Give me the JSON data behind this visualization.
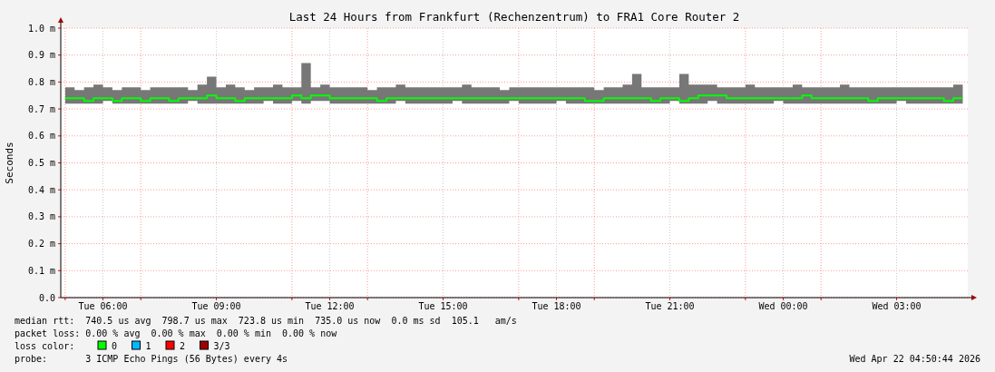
{
  "chart_data": {
    "type": "line",
    "title": "Last 24 Hours from Frankfurt (Rechenzentrum) to FRA1 Core Router 2",
    "ylabel": "Seconds",
    "xlim": [
      "2026-04-21T04:53",
      "2026-04-22T04:53"
    ],
    "xticks": [
      {
        "value": "2026-04-21T05:00",
        "label": null
      },
      {
        "value": "2026-04-21T06:00",
        "label": "Tue 06:00"
      },
      {
        "value": "2026-04-21T07:00",
        "label": null
      },
      {
        "value": "2026-04-21T09:00",
        "label": "Tue 09:00"
      },
      {
        "value": "2026-04-21T11:00",
        "label": null
      },
      {
        "value": "2026-04-21T12:00",
        "label": "Tue 12:00"
      },
      {
        "value": "2026-04-21T13:00",
        "label": null
      },
      {
        "value": "2026-04-21T15:00",
        "label": "Tue 15:00"
      },
      {
        "value": "2026-04-21T17:00",
        "label": null
      },
      {
        "value": "2026-04-21T18:00",
        "label": "Tue 18:00"
      },
      {
        "value": "2026-04-21T19:00",
        "label": null
      },
      {
        "value": "2026-04-21T21:00",
        "label": "Tue 21:00"
      },
      {
        "value": "2026-04-21T23:00",
        "label": null
      },
      {
        "value": "2026-04-22T00:00",
        "label": "Wed 00:00"
      },
      {
        "value": "2026-04-22T01:00",
        "label": null
      },
      {
        "value": "2026-04-22T03:00",
        "label": "Wed 03:00"
      }
    ],
    "ylim": [
      0,
      1.0
    ],
    "yticks": [
      {
        "value": 0,
        "label": "0.0"
      },
      {
        "value": 0.1,
        "label": "0.1 m"
      },
      {
        "value": 0.2,
        "label": "0.2 m"
      },
      {
        "value": 0.3,
        "label": "0.3 m"
      },
      {
        "value": 0.4,
        "label": "0.4 m"
      },
      {
        "value": 0.5,
        "label": "0.5 m"
      },
      {
        "value": 0.6,
        "label": "0.6 m"
      },
      {
        "value": 0.7,
        "label": "0.7 m"
      },
      {
        "value": 0.8,
        "label": "0.8 m"
      },
      {
        "value": 0.9,
        "label": "0.9 m"
      },
      {
        "value": 1.0,
        "label": "1.0 m"
      }
    ],
    "grid": true,
    "legend": "bottom left",
    "series": [
      {
        "name": "0",
        "color": "#00ff00",
        "x": [
          "2026-04-21T05:00",
          "2026-04-21T05:15",
          "2026-04-21T05:30",
          "2026-04-21T05:45",
          "2026-04-21T06:00",
          "2026-04-21T06:15",
          "2026-04-21T06:30",
          "2026-04-21T06:45",
          "2026-04-21T07:00",
          "2026-04-21T07:15",
          "2026-04-21T07:30",
          "2026-04-21T07:45",
          "2026-04-21T08:00",
          "2026-04-21T08:15",
          "2026-04-21T08:30",
          "2026-04-21T08:45",
          "2026-04-21T09:00",
          "2026-04-21T09:15",
          "2026-04-21T09:30",
          "2026-04-21T09:45",
          "2026-04-21T10:00",
          "2026-04-21T10:15",
          "2026-04-21T10:30",
          "2026-04-21T10:45",
          "2026-04-21T11:00",
          "2026-04-21T11:15",
          "2026-04-21T11:30",
          "2026-04-21T11:45",
          "2026-04-21T12:00",
          "2026-04-21T12:15",
          "2026-04-21T12:30",
          "2026-04-21T12:45",
          "2026-04-21T13:00",
          "2026-04-21T13:15",
          "2026-04-21T13:30",
          "2026-04-21T13:45",
          "2026-04-21T14:00",
          "2026-04-21T14:15",
          "2026-04-21T14:30",
          "2026-04-21T14:45",
          "2026-04-21T15:00",
          "2026-04-21T15:15",
          "2026-04-21T15:30",
          "2026-04-21T15:45",
          "2026-04-21T16:00",
          "2026-04-21T16:15",
          "2026-04-21T16:30",
          "2026-04-21T16:45",
          "2026-04-21T17:00",
          "2026-04-21T17:15",
          "2026-04-21T17:30",
          "2026-04-21T17:45",
          "2026-04-21T18:00",
          "2026-04-21T18:15",
          "2026-04-21T18:30",
          "2026-04-21T18:45",
          "2026-04-21T19:00",
          "2026-04-21T19:15",
          "2026-04-21T19:30",
          "2026-04-21T19:45",
          "2026-04-21T20:00",
          "2026-04-21T20:15",
          "2026-04-21T20:30",
          "2026-04-21T20:45",
          "2026-04-21T21:00",
          "2026-04-21T21:15",
          "2026-04-21T21:30",
          "2026-04-21T21:45",
          "2026-04-21T22:00",
          "2026-04-21T22:15",
          "2026-04-21T22:30",
          "2026-04-21T22:45",
          "2026-04-21T23:00",
          "2026-04-21T23:15",
          "2026-04-21T23:30",
          "2026-04-21T23:45",
          "2026-04-22T00:00",
          "2026-04-22T00:15",
          "2026-04-22T00:30",
          "2026-04-22T00:45",
          "2026-04-22T01:00",
          "2026-04-22T01:15",
          "2026-04-22T01:30",
          "2026-04-22T01:45",
          "2026-04-22T02:00",
          "2026-04-22T02:15",
          "2026-04-22T02:30",
          "2026-04-22T02:45",
          "2026-04-22T03:00",
          "2026-04-22T03:15",
          "2026-04-22T03:30",
          "2026-04-22T03:45",
          "2026-04-22T04:00",
          "2026-04-22T04:15",
          "2026-04-22T04:30",
          "2026-04-22T04:45"
        ],
        "values": [
          0.74,
          0.74,
          0.73,
          0.74,
          0.74,
          0.73,
          0.74,
          0.74,
          0.73,
          0.74,
          0.74,
          0.73,
          0.74,
          0.74,
          0.74,
          0.75,
          0.74,
          0.74,
          0.73,
          0.74,
          0.74,
          0.74,
          0.74,
          0.74,
          0.75,
          0.74,
          0.75,
          0.75,
          0.74,
          0.74,
          0.74,
          0.74,
          0.74,
          0.73,
          0.74,
          0.74,
          0.74,
          0.74,
          0.74,
          0.74,
          0.74,
          0.74,
          0.74,
          0.74,
          0.74,
          0.74,
          0.74,
          0.74,
          0.74,
          0.74,
          0.74,
          0.74,
          0.74,
          0.74,
          0.74,
          0.73,
          0.73,
          0.74,
          0.74,
          0.74,
          0.74,
          0.74,
          0.73,
          0.74,
          0.74,
          0.73,
          0.74,
          0.75,
          0.75,
          0.75,
          0.74,
          0.74,
          0.74,
          0.74,
          0.74,
          0.74,
          0.74,
          0.74,
          0.75,
          0.74,
          0.74,
          0.74,
          0.74,
          0.74,
          0.74,
          0.73,
          0.74,
          0.74,
          0.74,
          0.74,
          0.74,
          0.74,
          0.74,
          0.73,
          0.74,
          0.74
        ],
        "lower": [
          0.72,
          0.72,
          0.72,
          0.72,
          0.73,
          0.72,
          0.72,
          0.72,
          0.72,
          0.72,
          0.72,
          0.72,
          0.72,
          0.73,
          0.72,
          0.72,
          0.72,
          0.72,
          0.72,
          0.72,
          0.72,
          0.73,
          0.72,
          0.72,
          0.73,
          0.72,
          0.73,
          0.73,
          0.72,
          0.72,
          0.72,
          0.72,
          0.72,
          0.72,
          0.72,
          0.73,
          0.72,
          0.72,
          0.72,
          0.72,
          0.72,
          0.73,
          0.72,
          0.72,
          0.72,
          0.72,
          0.72,
          0.73,
          0.72,
          0.72,
          0.72,
          0.72,
          0.73,
          0.72,
          0.72,
          0.72,
          0.72,
          0.72,
          0.72,
          0.72,
          0.72,
          0.72,
          0.72,
          0.72,
          0.73,
          0.72,
          0.72,
          0.72,
          0.73,
          0.72,
          0.72,
          0.72,
          0.72,
          0.72,
          0.72,
          0.73,
          0.72,
          0.72,
          0.72,
          0.72,
          0.72,
          0.72,
          0.72,
          0.72,
          0.72,
          0.72,
          0.72,
          0.72,
          0.73,
          0.72,
          0.72,
          0.72,
          0.72,
          0.72,
          0.72,
          0.72
        ],
        "upper": [
          0.78,
          0.77,
          0.78,
          0.79,
          0.78,
          0.77,
          0.78,
          0.78,
          0.77,
          0.78,
          0.78,
          0.78,
          0.78,
          0.77,
          0.79,
          0.82,
          0.78,
          0.79,
          0.78,
          0.77,
          0.78,
          0.78,
          0.79,
          0.78,
          0.78,
          0.87,
          0.78,
          0.79,
          0.78,
          0.78,
          0.78,
          0.78,
          0.77,
          0.78,
          0.78,
          0.79,
          0.78,
          0.78,
          0.78,
          0.78,
          0.78,
          0.78,
          0.79,
          0.78,
          0.78,
          0.78,
          0.77,
          0.78,
          0.78,
          0.78,
          0.78,
          0.78,
          0.78,
          0.78,
          0.78,
          0.78,
          0.77,
          0.78,
          0.78,
          0.79,
          0.83,
          0.78,
          0.78,
          0.78,
          0.78,
          0.83,
          0.79,
          0.79,
          0.79,
          0.78,
          0.78,
          0.78,
          0.79,
          0.78,
          0.78,
          0.78,
          0.78,
          0.79,
          0.78,
          0.78,
          0.78,
          0.78,
          0.79,
          0.78,
          0.78,
          0.78,
          0.78,
          0.78,
          0.78,
          0.78,
          0.78,
          0.78,
          0.78,
          0.78,
          0.79,
          0.78
        ]
      },
      {
        "name": "1",
        "color": "#00b8ff"
      },
      {
        "name": "2",
        "color": "#ff0000"
      },
      {
        "name": "3/3",
        "color": "#a00000"
      }
    ],
    "annotations": [
      "median rtt:  740.5 us avg  798.7 us max  723.8 us min  735.0 us now  0.0 ms sd  105.1   am/s",
      "packet loss: 0.00 % avg  0.00 % max  0.00 % min  0.00 % now",
      "loss color:",
      "probe:       3 ICMP Echo Pings (56 Bytes) every 4s",
      "Wed Apr 22 04:50:44 2026"
    ]
  }
}
